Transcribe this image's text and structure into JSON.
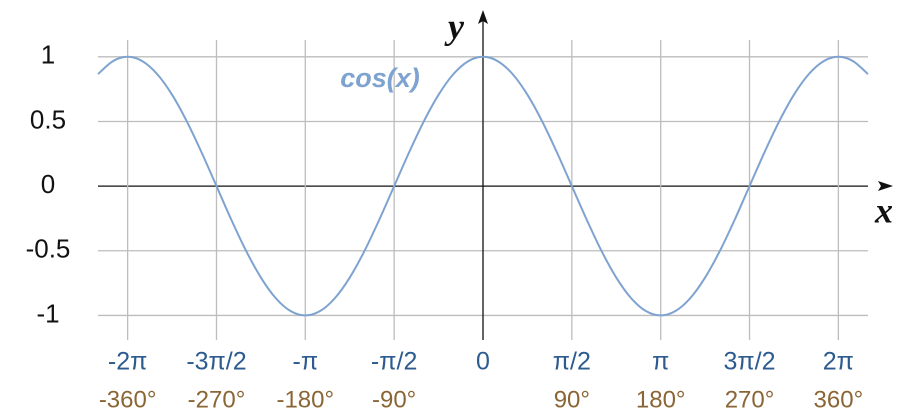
{
  "chart_data": {
    "type": "line",
    "x_label": "x",
    "y_label": "y",
    "x": [
      -6.807,
      -6.545,
      -6.283,
      -6.021,
      -5.76,
      -5.498,
      -5.236,
      -4.974,
      -4.712,
      -4.451,
      -4.189,
      -3.927,
      -3.665,
      -3.403,
      -3.142,
      -2.88,
      -2.618,
      -2.356,
      -2.094,
      -1.833,
      -1.571,
      -1.309,
      -1.047,
      -0.785,
      -0.524,
      -0.262,
      0,
      0.262,
      0.524,
      0.785,
      1.047,
      1.309,
      1.571,
      1.833,
      2.094,
      2.356,
      2.618,
      2.88,
      3.142,
      3.403,
      3.665,
      3.927,
      4.189,
      4.451,
      4.712,
      4.974,
      5.236,
      5.498,
      5.76,
      6.021,
      6.283,
      6.545,
      6.807
    ],
    "series": [
      {
        "name": "cos(x)",
        "color": "#7ea3d0",
        "values": [
          0.866,
          0.966,
          1,
          0.966,
          0.866,
          0.707,
          0.5,
          0.259,
          0,
          -0.259,
          -0.5,
          -0.707,
          -0.866,
          -0.966,
          -1,
          -0.966,
          -0.866,
          -0.707,
          -0.5,
          -0.259,
          0,
          0.259,
          0.5,
          0.707,
          0.866,
          0.966,
          1,
          0.966,
          0.866,
          0.707,
          0.5,
          0.259,
          0,
          -0.259,
          -0.5,
          -0.707,
          -0.866,
          -0.966,
          -1,
          -0.966,
          -0.866,
          -0.707,
          -0.5,
          -0.259,
          0,
          0.259,
          0.5,
          0.707,
          0.866,
          0.966,
          1,
          0.966,
          0.866
        ]
      }
    ],
    "xlim": [
      -6.807,
      6.807
    ],
    "ylim": [
      -1.19,
      1.13
    ],
    "xticks": [
      {
        "value": -6.283,
        "label": "-2π"
      },
      {
        "value": -4.712,
        "label": "-3π/2"
      },
      {
        "value": -3.142,
        "label": "-π"
      },
      {
        "value": -1.571,
        "label": "-π/2"
      },
      0,
      {
        "value": 1.571,
        "label": "π/2"
      },
      {
        "value": 3.142,
        "label": "π"
      },
      {
        "value": 4.712,
        "label": "3π/2"
      },
      {
        "value": 6.283,
        "label": "2π"
      }
    ],
    "x_degree_labels": [
      "-360°",
      "-270°",
      "-180°",
      "-90°",
      null,
      "90°",
      "180°",
      "270°",
      "360°"
    ],
    "yticks": [
      -1,
      -0.5,
      0,
      0.5,
      1
    ],
    "grid": true
  }
}
